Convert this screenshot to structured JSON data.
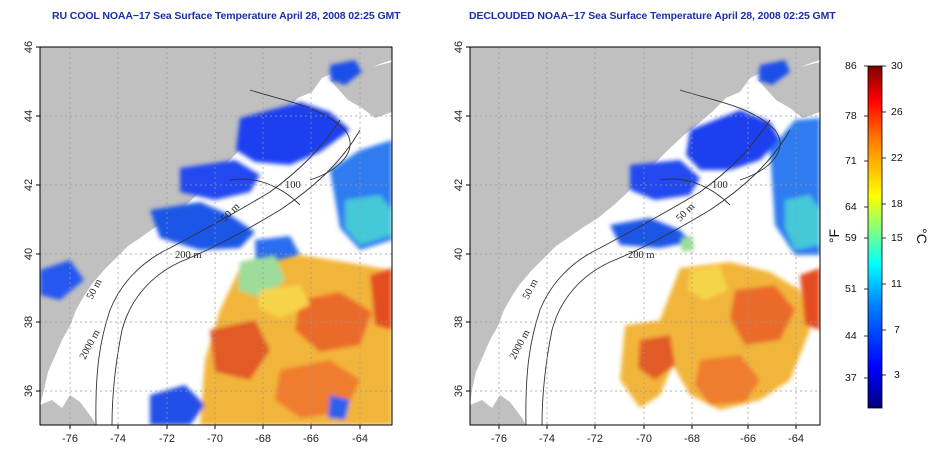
{
  "maps": [
    {
      "id": "left",
      "title": "RU COOL NOAA−17 Sea Surface Temperature April 28, 2008 02:25 GMT",
      "lat_ticks": [
        "46",
        "44",
        "42",
        "40",
        "38",
        "36"
      ],
      "lon_ticks": [
        "-76",
        "-74",
        "-72",
        "-70",
        "-68",
        "-66",
        "-64"
      ],
      "contour_labels": [
        "200 m",
        "50 m",
        "2000 m",
        "50 m",
        "100"
      ],
      "lat_range": [
        35,
        46
      ],
      "lon_range": [
        -77,
        -63
      ]
    },
    {
      "id": "right",
      "title": "DECLOUDED NOAA−17 Sea Surface Temperature April 28, 2008 02:25 GMT",
      "lat_ticks": [
        "46",
        "44",
        "42",
        "40",
        "38",
        "36"
      ],
      "lon_ticks": [
        "-76",
        "-74",
        "-72",
        "-70",
        "-68",
        "-66",
        "-64"
      ],
      "contour_labels": [
        "200 m",
        "50 m",
        "2000 m",
        "50 m",
        "100"
      ],
      "lat_range": [
        35,
        46
      ],
      "lon_range": [
        -77,
        -63
      ]
    }
  ],
  "colorbar": {
    "f_labels": [
      "86",
      "78",
      "71",
      "64",
      "59",
      "51",
      "44",
      "37"
    ],
    "c_labels": [
      "30",
      "26",
      "22",
      "18",
      "15",
      "11",
      "7",
      "3"
    ],
    "f_unit": "°F",
    "c_unit": "°C",
    "range_c": [
      0,
      30
    ],
    "colors": [
      "#00007f",
      "#0000ff",
      "#0080ff",
      "#00ffff",
      "#80ff80",
      "#ffff00",
      "#ff8000",
      "#ff0000",
      "#7f0000"
    ]
  },
  "colors": {
    "land": "#c0c0c0",
    "ocean": "#ffffff",
    "title": "#1c2ea8"
  }
}
